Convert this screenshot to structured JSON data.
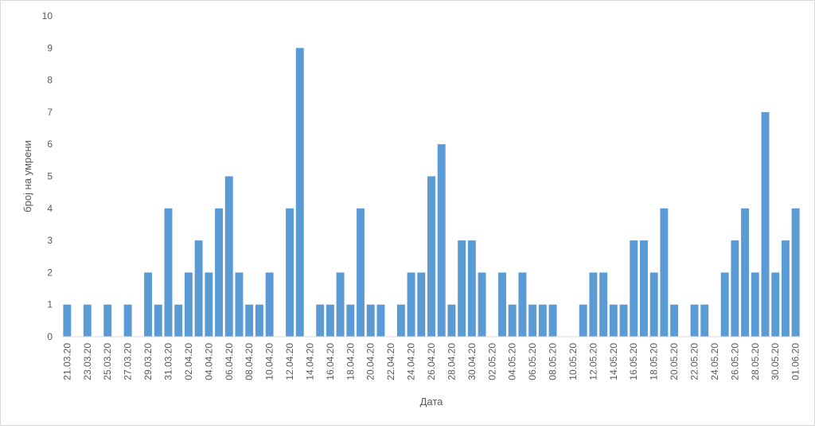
{
  "chart_data": {
    "type": "bar",
    "xlabel": "Дата",
    "ylabel": "број на умрени",
    "ylim": [
      0,
      10
    ],
    "yticks": [
      "0",
      "1",
      "2",
      "3",
      "4",
      "5",
      "6",
      "7",
      "8",
      "9",
      "10"
    ],
    "grid": false,
    "bar_color": "#5b9bd5",
    "tick_labels": [
      "21.03.20",
      "23.03.20",
      "25.03.20",
      "27.03.20",
      "29.03.20",
      "31.03.20",
      "02.04.20",
      "04.04.20",
      "06.04.20",
      "08.04.20",
      "10.04.20",
      "12.04.20",
      "14.04.20",
      "16.04.20",
      "18.04.20",
      "20.04.20",
      "22.04.20",
      "24.04.20",
      "26.04.20",
      "28.04.20",
      "30.04.20",
      "02.05.20",
      "04.05.20",
      "06.05.20",
      "08.05.20",
      "10.05.20",
      "12.05.20",
      "14.05.20",
      "16.05.20",
      "18.05.20",
      "20.05.20",
      "22.05.20",
      "24.05.20",
      "26.05.20",
      "28.05.20",
      "30.05.20",
      "01.06.20"
    ],
    "values": [
      1,
      0,
      1,
      0,
      1,
      0,
      1,
      0,
      2,
      1,
      4,
      1,
      2,
      3,
      2,
      4,
      5,
      2,
      1,
      1,
      2,
      0,
      4,
      9,
      0,
      1,
      1,
      2,
      1,
      4,
      1,
      1,
      0,
      1,
      2,
      2,
      5,
      6,
      1,
      3,
      3,
      2,
      0,
      2,
      1,
      2,
      1,
      1,
      1,
      0,
      0,
      1,
      2,
      2,
      1,
      1,
      3,
      3,
      2,
      4,
      1,
      0,
      1,
      1,
      0,
      2,
      3,
      4,
      2,
      7,
      2,
      3,
      4
    ]
  }
}
